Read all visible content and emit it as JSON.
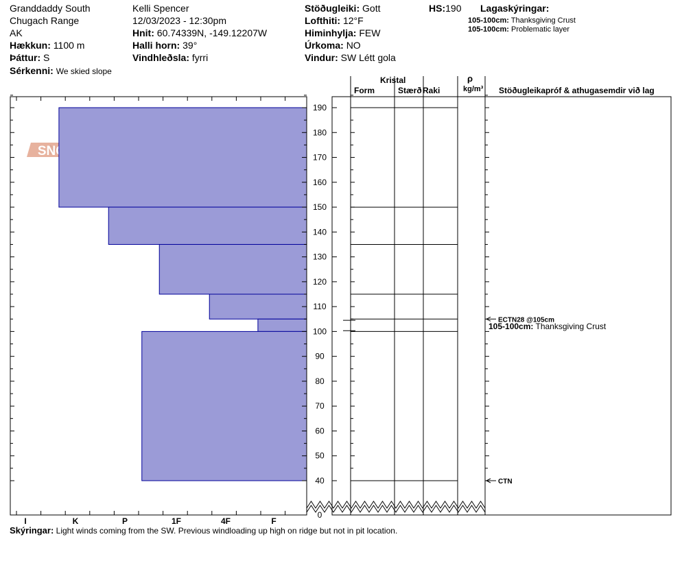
{
  "header": {
    "location": "Granddaddy South",
    "range": "Chugach Range",
    "state": "AK",
    "elevation_label": "Hækkun:",
    "elevation": "1100 m",
    "aspect_label": "Þáttur:",
    "aspect": "S",
    "special_label": "Sérkenni:",
    "special": "We skied slope",
    "observer": "Kelli Spencer",
    "datetime": "12/03/2023 - 12:30pm",
    "coords_label": "Hnit:",
    "coords": "60.74339N, -149.12207W",
    "slope_label": "Halli horn:",
    "slope": "39°",
    "windload_label": "Vindhleðsla:",
    "windload": "fyrri",
    "stability_label": "Stöðugleiki:",
    "stability": "Gott",
    "airtemp_label": "Lofthiti:",
    "airtemp": "12°F",
    "sky_label": "Himinhylja:",
    "sky": "FEW",
    "precip_label": "Úrkoma:",
    "precip": "NO",
    "wind_label": "Vindur:",
    "wind": "SW Létt gola",
    "hs_label": "HS:",
    "hs": "190",
    "layers_label": "Lagaskýringar:",
    "layer_notes": [
      {
        "range": "105-100cm:",
        "text": "Thanksgiving Crust"
      },
      {
        "range": "105-100cm:",
        "text": "Problematic layer"
      }
    ]
  },
  "columns": {
    "crystal": "Kristal",
    "form": "Form",
    "size": "Stærð",
    "moisture": "Raki",
    "density_symbol": "ρ",
    "density_unit": "kg/m³",
    "tests": "Stöðugleikapróf & athugasemdir við lag"
  },
  "logo_text": "SNOW PILOT",
  "annotations": [
    {
      "depth": 105,
      "text": "ECTN28 @105cm"
    },
    {
      "depth": 40,
      "text": "CTN"
    }
  ],
  "layer_comment": {
    "range": "105-100cm:",
    "text": "Thanksgiving Crust",
    "depth": 102
  },
  "caption": {
    "label": "Skýringar:",
    "text": "Light winds coming from the SW. Previous windloading up high on ridge but not in pit location."
  },
  "colors": {
    "bar_fill": "#9b9bd7",
    "bar_stroke": "#00009a",
    "logo": "#e3a48d",
    "flake": "#b8c8d4"
  },
  "chart_data": {
    "type": "bar",
    "title": "",
    "xlabel": "",
    "ylabel": "",
    "ylim": [
      0,
      195
    ],
    "x_categories": [
      "I",
      "K",
      "P",
      "1F",
      "4F",
      "F"
    ],
    "y_ticks": [
      0,
      40,
      50,
      60,
      70,
      80,
      90,
      100,
      110,
      120,
      130,
      140,
      150,
      160,
      170,
      180,
      190
    ],
    "hardness_layers": [
      {
        "top": 190,
        "bottom": 150,
        "hardness_index": 0.67
      },
      {
        "top": 150,
        "bottom": 135,
        "hardness_index": 1.67
      },
      {
        "top": 135,
        "bottom": 115,
        "hardness_index": 2.67
      },
      {
        "top": 115,
        "bottom": 105,
        "hardness_index": 3.67
      },
      {
        "top": 105,
        "bottom": 100,
        "hardness_index": 4.67
      },
      {
        "top": 100,
        "bottom": 40,
        "hardness_index": 2.33
      }
    ],
    "layer_boundaries": [
      190,
      150,
      135,
      115,
      105,
      100,
      40
    ]
  }
}
